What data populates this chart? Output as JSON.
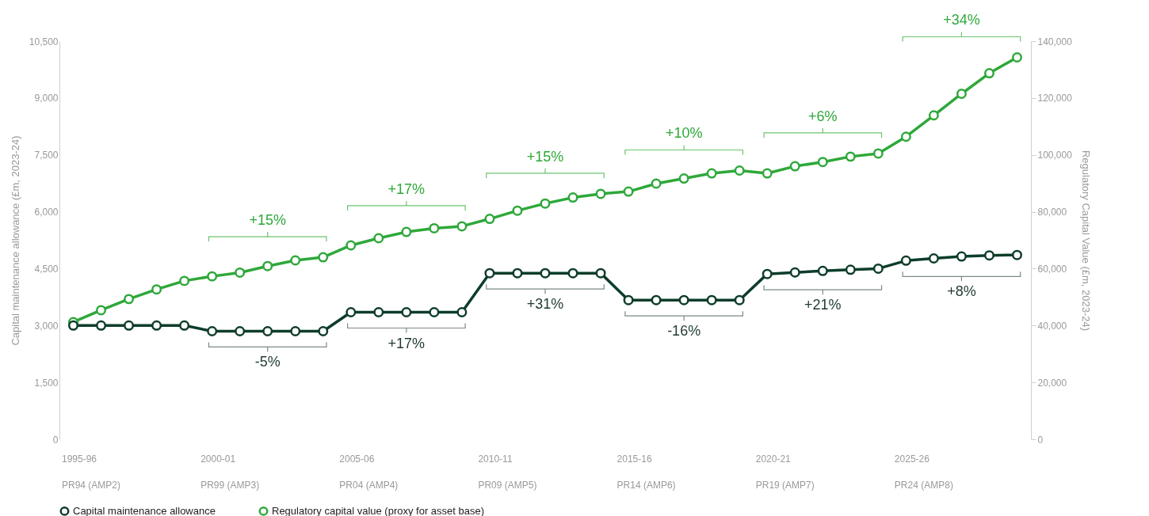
{
  "chart_data": {
    "type": "line",
    "ylabel": "Capital maintenance allowance (£m, 2023-24)",
    "y2label": "Regulatory Capital Value (£m, 2023-24)",
    "categories": [
      "1995-96",
      null,
      null,
      null,
      null,
      "2000-01",
      null,
      null,
      null,
      null,
      "2005-06",
      null,
      null,
      null,
      null,
      "2010-11",
      null,
      null,
      null,
      null,
      "2015-16",
      null,
      null,
      null,
      null,
      "2020-21",
      null,
      null,
      null,
      null,
      "2025-26",
      null,
      null,
      null,
      null
    ],
    "series": [
      {
        "name": "Capital maintenance allowance",
        "color": "#0e3d2a",
        "values": [
          3000,
          3000,
          3000,
          3000,
          3000,
          2850,
          2850,
          2850,
          2850,
          2850,
          3350,
          3350,
          3350,
          3350,
          3350,
          4380,
          4380,
          4380,
          4380,
          4380,
          3670,
          3670,
          3670,
          3670,
          3670,
          4360,
          4400,
          4440,
          4470,
          4500,
          4710,
          4770,
          4820,
          4850,
          4860
        ]
      },
      {
        "name": "Regulatory capital value (proxy for asset base)",
        "color": "#2ea83a",
        "axis": "y2",
        "values": [
          41200,
          45400,
          49300,
          52700,
          55700,
          57300,
          58600,
          60900,
          62900,
          64000,
          68200,
          70700,
          72900,
          74200,
          74900,
          77500,
          80400,
          82900,
          85000,
          86300,
          87100,
          89900,
          91700,
          93500,
          94500,
          93500,
          96000,
          97500,
          99400,
          100500,
          106400,
          113900,
          121500,
          128700,
          134300
        ]
      }
    ],
    "ylim": [
      0,
      10500
    ],
    "yticks": [
      0,
      {
        "value": 1500,
        "label": "1,500"
      },
      {
        "value": 3000,
        "label": "3,000"
      },
      {
        "value": 4500,
        "label": "4,500"
      },
      {
        "value": 6000,
        "label": "6,000"
      },
      {
        "value": 7500,
        "label": "7,500"
      },
      {
        "value": 9000,
        "label": "9,000"
      },
      {
        "value": 10500,
        "label": "10,500"
      }
    ],
    "y2lim": [
      0,
      140000
    ],
    "y2ticks": [
      0,
      {
        "value": 20000,
        "label": "20,000"
      },
      {
        "value": 40000,
        "label": "40,000"
      },
      {
        "value": 60000,
        "label": "60,000"
      },
      {
        "value": 80000,
        "label": "80,000"
      },
      {
        "value": 100000,
        "label": "100,000"
      },
      {
        "value": 120000,
        "label": "120,000"
      },
      {
        "value": 140000,
        "label": "140,000"
      }
    ],
    "annotations": [
      "PR94 (AMP2)",
      "PR99 (AMP3)",
      "PR04 (AMP4)",
      "PR09 (AMP5)",
      "PR14 (AMP6)",
      "PR19 (AMP7)",
      "PR24 (AMP8)",
      "+15%",
      "+17%",
      "+15%",
      "+10%",
      "+6%",
      "+34%",
      "-5%",
      "+17%",
      "+31%",
      "-16%",
      "+21%",
      "+8%"
    ],
    "marker": "circle",
    "line_style": "solid",
    "grid": false,
    "legend": "bottom"
  }
}
